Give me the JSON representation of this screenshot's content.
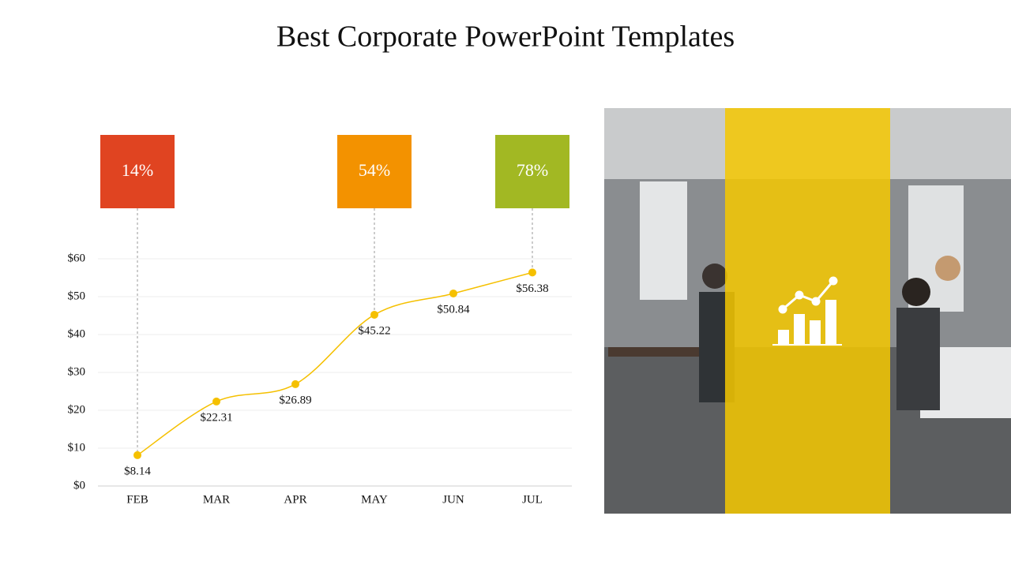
{
  "title": "Best Corporate PowerPoint Templates",
  "chart_data": {
    "type": "line",
    "categories": [
      "FEB",
      "MAR",
      "APR",
      "MAY",
      "JUN",
      "JUL"
    ],
    "values": [
      8.14,
      22.31,
      26.89,
      45.22,
      50.84,
      56.38
    ],
    "value_labels": [
      "$8.14",
      "$22.31",
      "$26.89",
      "$45.22",
      "$50.84",
      "$56.38"
    ],
    "color": "#f5c000",
    "ylim": [
      0,
      60
    ],
    "yticks": [
      {
        "value": 0,
        "label": "$0"
      },
      {
        "value": 10,
        "label": "$10"
      },
      {
        "value": 20,
        "label": "$20"
      },
      {
        "value": 30,
        "label": "$30"
      },
      {
        "value": 40,
        "label": "$40"
      },
      {
        "value": 50,
        "label": "$50"
      },
      {
        "value": 60,
        "label": "$60"
      }
    ],
    "grid": true,
    "annotations": [
      {
        "label": "14%",
        "category": "FEB",
        "color": "#e04421"
      },
      {
        "label": "54%",
        "category": "MAY",
        "color": "#f39200"
      },
      {
        "label": "78%",
        "category": "JUL",
        "color": "#a2b823"
      }
    ]
  }
}
